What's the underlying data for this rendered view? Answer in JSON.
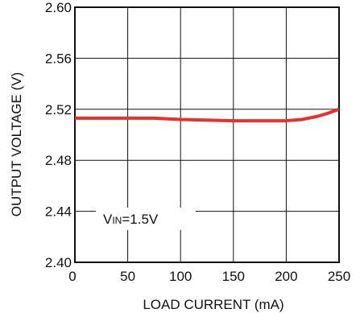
{
  "chart_data": {
    "type": "line",
    "title": "",
    "xlabel": "LOAD CURRENT (mA)",
    "ylabel": "OUTPUT VOLTAGE (V)",
    "xlim": [
      0,
      250
    ],
    "ylim": [
      2.4,
      2.6
    ],
    "x_ticks": [
      "0",
      "50",
      "100",
      "150",
      "200",
      "250"
    ],
    "y_ticks": [
      "2.40",
      "2.44",
      "2.48",
      "2.52",
      "2.56",
      "2.60"
    ],
    "grid": true,
    "annotation": {
      "main": "V",
      "sub": "IN",
      "rest": "=1.5V"
    },
    "series": [
      {
        "color": "#e8312f",
        "x": [
          0,
          25,
          50,
          75,
          100,
          125,
          150,
          175,
          200,
          215,
          230,
          240,
          250
        ],
        "y": [
          2.513,
          2.513,
          2.513,
          2.513,
          2.512,
          2.5115,
          2.511,
          2.511,
          2.511,
          2.512,
          2.5145,
          2.517,
          2.52
        ]
      }
    ]
  }
}
